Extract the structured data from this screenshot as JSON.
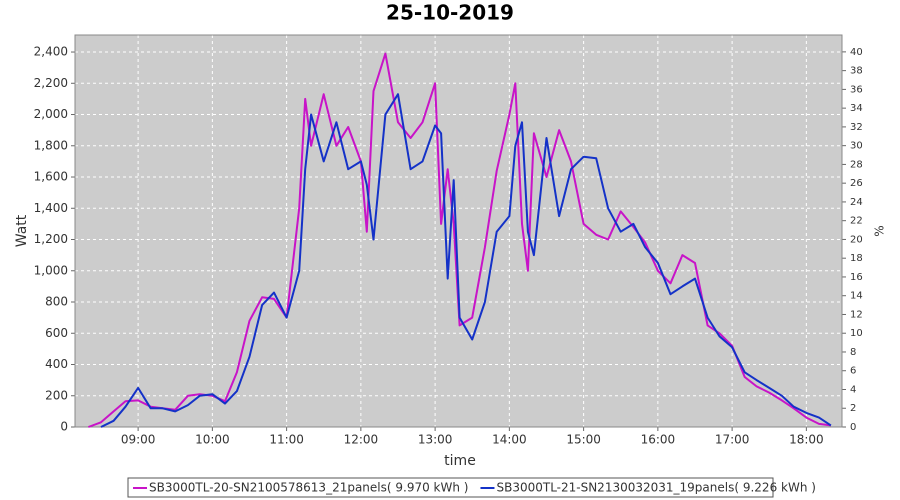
{
  "chart_data": {
    "type": "line",
    "title": "25-10-2019",
    "x_label": "time",
    "y_label": "Watt",
    "y2_label": "%",
    "x": [
      8.33,
      8.5,
      8.67,
      8.83,
      9.0,
      9.17,
      9.33,
      9.5,
      9.67,
      9.83,
      10.0,
      10.17,
      10.33,
      10.5,
      10.67,
      10.83,
      11.0,
      11.17,
      11.25,
      11.33,
      11.5,
      11.67,
      11.83,
      12.0,
      12.08,
      12.17,
      12.33,
      12.5,
      12.67,
      12.83,
      13.0,
      13.08,
      13.17,
      13.25,
      13.33,
      13.5,
      13.67,
      13.83,
      14.0,
      14.08,
      14.17,
      14.25,
      14.33,
      14.5,
      14.67,
      14.83,
      15.0,
      15.17,
      15.33,
      15.5,
      15.67,
      15.83,
      16.0,
      16.17,
      16.33,
      16.5,
      16.67,
      16.83,
      17.0,
      17.17,
      17.33,
      17.5,
      17.67,
      17.83,
      18.0,
      18.17,
      18.33
    ],
    "series": [
      {
        "name": "SB3000TL-20-SN2100578613_21panels( 9.970 kWh )",
        "color": "#c814c8",
        "values": [
          0,
          30,
          100,
          165,
          170,
          130,
          120,
          110,
          200,
          210,
          200,
          165,
          350,
          680,
          830,
          820,
          700,
          1400,
          2100,
          1800,
          2130,
          1800,
          1920,
          1700,
          1250,
          2150,
          2390,
          1950,
          1850,
          1950,
          2200,
          1300,
          1650,
          1300,
          650,
          700,
          1150,
          1640,
          2000,
          2200,
          1300,
          1000,
          1880,
          1600,
          1900,
          1700,
          1300,
          1230,
          1200,
          1380,
          1280,
          1180,
          1000,
          920,
          1100,
          1050,
          650,
          600,
          520,
          320,
          260,
          220,
          170,
          120,
          60,
          20,
          10
        ]
      },
      {
        "name": "SB3000TL-21-SN2130032031_19panels( 9.226 kWh )",
        "color": "#1432c8",
        "values": [
          null,
          0,
          40,
          130,
          250,
          120,
          120,
          100,
          140,
          200,
          210,
          150,
          230,
          450,
          780,
          860,
          700,
          1000,
          1650,
          2000,
          1700,
          1950,
          1650,
          1700,
          1550,
          1200,
          2000,
          2130,
          1650,
          1700,
          1930,
          1880,
          950,
          1580,
          700,
          560,
          800,
          1250,
          1350,
          1800,
          1950,
          1250,
          1100,
          1850,
          1350,
          1650,
          1730,
          1720,
          1400,
          1250,
          1300,
          1150,
          1050,
          850,
          900,
          950,
          700,
          580,
          510,
          350,
          300,
          250,
          200,
          130,
          90,
          60,
          10
        ]
      }
    ],
    "xlim": [
      8.15,
      18.48
    ],
    "xticks": [
      {
        "value": 9,
        "label": "09:00"
      },
      {
        "value": 10,
        "label": "10:00"
      },
      {
        "value": 11,
        "label": "11:00"
      },
      {
        "value": 12,
        "label": "12:00"
      },
      {
        "value": 13,
        "label": "13:00"
      },
      {
        "value": 14,
        "label": "14:00"
      },
      {
        "value": 15,
        "label": "15:00"
      },
      {
        "value": 16,
        "label": "16:00"
      },
      {
        "value": 17,
        "label": "17:00"
      },
      {
        "value": 18,
        "label": "18:00"
      }
    ],
    "ylim": [
      0,
      2509
    ],
    "yticks": [
      0,
      200,
      400,
      600,
      800,
      {
        "value": 1000,
        "label": "1,000"
      },
      {
        "value": 1200,
        "label": "1,200"
      },
      {
        "value": 1400,
        "label": "1,400"
      },
      {
        "value": 1600,
        "label": "1,600"
      },
      {
        "value": 1800,
        "label": "1,800"
      },
      {
        "value": 2000,
        "label": "2,000"
      },
      {
        "value": 2200,
        "label": "2,200"
      },
      {
        "value": 2400,
        "label": "2,400"
      }
    ],
    "y2lim": [
      0,
      41.8
    ],
    "y2ticks": [
      0,
      2,
      4,
      6,
      8,
      10,
      12,
      14,
      16,
      18,
      20,
      22,
      24,
      26,
      28,
      30,
      32,
      34,
      36,
      38,
      40
    ],
    "grid": true
  }
}
